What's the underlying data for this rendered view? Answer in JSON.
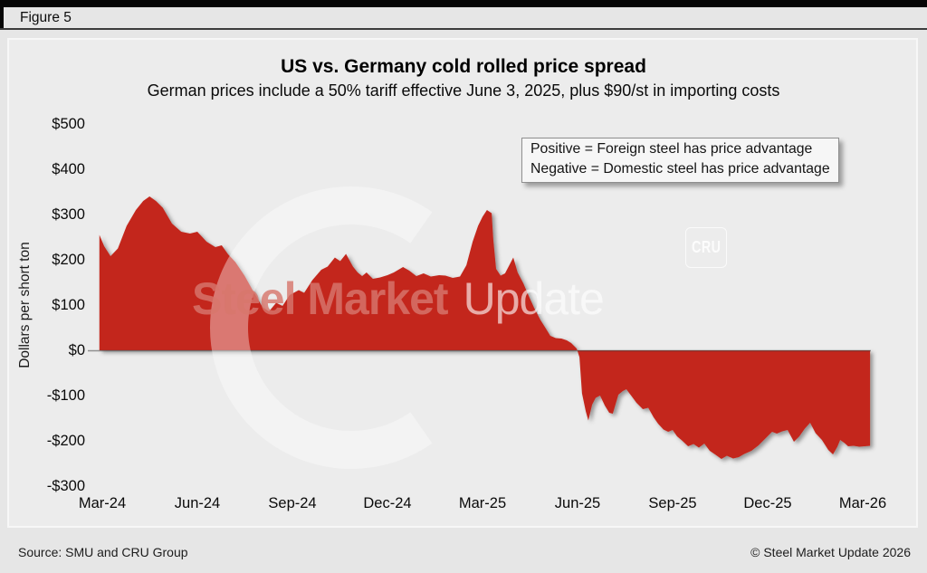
{
  "figure_label": "Figure 5",
  "chart_data": {
    "type": "area",
    "title": "US vs. Germany cold rolled price spread",
    "subtitle": "German prices include a 50% tariff effective June 3, 2025, plus $90/st in importing costs",
    "ylabel": "Dollars per short ton",
    "ylim": [
      -300,
      500
    ],
    "grid": false,
    "x_unit": "months since Mar-2024, weekly observations",
    "y_ticks": [
      {
        "value": 500,
        "label": "$500"
      },
      {
        "value": 400,
        "label": "$400"
      },
      {
        "value": 300,
        "label": "$300"
      },
      {
        "value": 200,
        "label": "$200"
      },
      {
        "value": 100,
        "label": "$100"
      },
      {
        "value": 0,
        "label": "$0"
      },
      {
        "value": -100,
        "label": "-$100"
      },
      {
        "value": -200,
        "label": "-$200"
      },
      {
        "value": -300,
        "label": "-$300"
      }
    ],
    "x_ticks": [
      {
        "month": 0,
        "label": "Mar-24"
      },
      {
        "month": 3,
        "label": "Jun-24"
      },
      {
        "month": 6,
        "label": "Sep-24"
      },
      {
        "month": 9,
        "label": "Dec-24"
      },
      {
        "month": 12,
        "label": "Mar-25"
      },
      {
        "month": 15,
        "label": "Jun-25"
      },
      {
        "month": 18,
        "label": "Sep-25"
      },
      {
        "month": 21,
        "label": "Dec-25"
      },
      {
        "month": 24,
        "label": "Mar-26"
      }
    ],
    "annotation": {
      "line1": "Positive = Foreign steel has price advantage",
      "line2": "Negative = Domestic steel has price advantage"
    },
    "series": [
      {
        "name": "US minus Germany cold rolled price spread ($/short ton)",
        "color": "#c3271b",
        "points": [
          [
            -0.09,
            255
          ],
          [
            0.06,
            230
          ],
          [
            0.26,
            208
          ],
          [
            0.49,
            225
          ],
          [
            0.77,
            275
          ],
          [
            1.06,
            310
          ],
          [
            1.29,
            330
          ],
          [
            1.49,
            340
          ],
          [
            1.69,
            330
          ],
          [
            1.91,
            315
          ],
          [
            2.2,
            280
          ],
          [
            2.49,
            262
          ],
          [
            2.77,
            258
          ],
          [
            3.0,
            262
          ],
          [
            3.29,
            240
          ],
          [
            3.57,
            228
          ],
          [
            3.77,
            232
          ],
          [
            3.97,
            212
          ],
          [
            4.2,
            195
          ],
          [
            4.49,
            165
          ],
          [
            4.77,
            130
          ],
          [
            5.06,
            95
          ],
          [
            5.26,
            86
          ],
          [
            5.49,
            105
          ],
          [
            5.69,
            98
          ],
          [
            5.91,
            122
          ],
          [
            6.2,
            133
          ],
          [
            6.37,
            127
          ],
          [
            6.63,
            155
          ],
          [
            6.91,
            178
          ],
          [
            7.11,
            185
          ],
          [
            7.34,
            205
          ],
          [
            7.51,
            197
          ],
          [
            7.69,
            213
          ],
          [
            7.91,
            185
          ],
          [
            8.06,
            172
          ],
          [
            8.2,
            164
          ],
          [
            8.34,
            172
          ],
          [
            8.54,
            158
          ],
          [
            8.77,
            161
          ],
          [
            9.0,
            166
          ],
          [
            9.2,
            172
          ],
          [
            9.49,
            184
          ],
          [
            9.69,
            176
          ],
          [
            9.91,
            164
          ],
          [
            10.14,
            170
          ],
          [
            10.37,
            163
          ],
          [
            10.63,
            166
          ],
          [
            10.83,
            165
          ],
          [
            11.06,
            160
          ],
          [
            11.29,
            163
          ],
          [
            11.49,
            188
          ],
          [
            11.69,
            240
          ],
          [
            11.86,
            275
          ],
          [
            12.0,
            295
          ],
          [
            12.14,
            310
          ],
          [
            12.29,
            303
          ],
          [
            12.34,
            245
          ],
          [
            12.43,
            180
          ],
          [
            12.57,
            165
          ],
          [
            12.71,
            170
          ],
          [
            12.86,
            190
          ],
          [
            12.97,
            205
          ],
          [
            13.11,
            172
          ],
          [
            13.29,
            148
          ],
          [
            13.46,
            120
          ],
          [
            13.63,
            94
          ],
          [
            13.83,
            67
          ],
          [
            14.0,
            48
          ],
          [
            14.14,
            32
          ],
          [
            14.31,
            27
          ],
          [
            14.49,
            26
          ],
          [
            14.66,
            22
          ],
          [
            14.8,
            16
          ],
          [
            14.97,
            4
          ],
          [
            15.06,
            -15
          ],
          [
            15.14,
            -95
          ],
          [
            15.26,
            -135
          ],
          [
            15.34,
            -155
          ],
          [
            15.46,
            -120
          ],
          [
            15.57,
            -105
          ],
          [
            15.71,
            -100
          ],
          [
            15.86,
            -122
          ],
          [
            16.0,
            -138
          ],
          [
            16.11,
            -140
          ],
          [
            16.29,
            -98
          ],
          [
            16.43,
            -90
          ],
          [
            16.54,
            -86
          ],
          [
            16.69,
            -100
          ],
          [
            16.86,
            -116
          ],
          [
            17.06,
            -130
          ],
          [
            17.23,
            -127
          ],
          [
            17.4,
            -148
          ],
          [
            17.54,
            -162
          ],
          [
            17.71,
            -175
          ],
          [
            17.86,
            -180
          ],
          [
            18.0,
            -176
          ],
          [
            18.14,
            -190
          ],
          [
            18.31,
            -200
          ],
          [
            18.49,
            -212
          ],
          [
            18.66,
            -207
          ],
          [
            18.83,
            -215
          ],
          [
            19.0,
            -206
          ],
          [
            19.17,
            -222
          ],
          [
            19.34,
            -230
          ],
          [
            19.54,
            -240
          ],
          [
            19.71,
            -233
          ],
          [
            19.91,
            -239
          ],
          [
            20.09,
            -236
          ],
          [
            20.26,
            -229
          ],
          [
            20.49,
            -222
          ],
          [
            20.71,
            -210
          ],
          [
            20.91,
            -196
          ],
          [
            21.14,
            -180
          ],
          [
            21.29,
            -184
          ],
          [
            21.46,
            -179
          ],
          [
            21.63,
            -176
          ],
          [
            21.83,
            -202
          ],
          [
            22.0,
            -190
          ],
          [
            22.17,
            -173
          ],
          [
            22.34,
            -160
          ],
          [
            22.51,
            -183
          ],
          [
            22.71,
            -198
          ],
          [
            22.91,
            -220
          ],
          [
            23.06,
            -230
          ],
          [
            23.2,
            -213
          ],
          [
            23.29,
            -198
          ],
          [
            23.43,
            -205
          ],
          [
            23.54,
            -212
          ],
          [
            23.71,
            -211
          ],
          [
            23.89,
            -213
          ],
          [
            24.06,
            -212
          ],
          [
            24.23,
            -211
          ]
        ]
      }
    ]
  },
  "watermark": {
    "text_primary": "Steel Market",
    "text_secondary": "Update",
    "badge": "CRU",
    "color_primary": "#d7766c"
  },
  "footer": {
    "source": "Source: SMU and CRU Group",
    "copyright": "© Steel Market Update 2026"
  }
}
